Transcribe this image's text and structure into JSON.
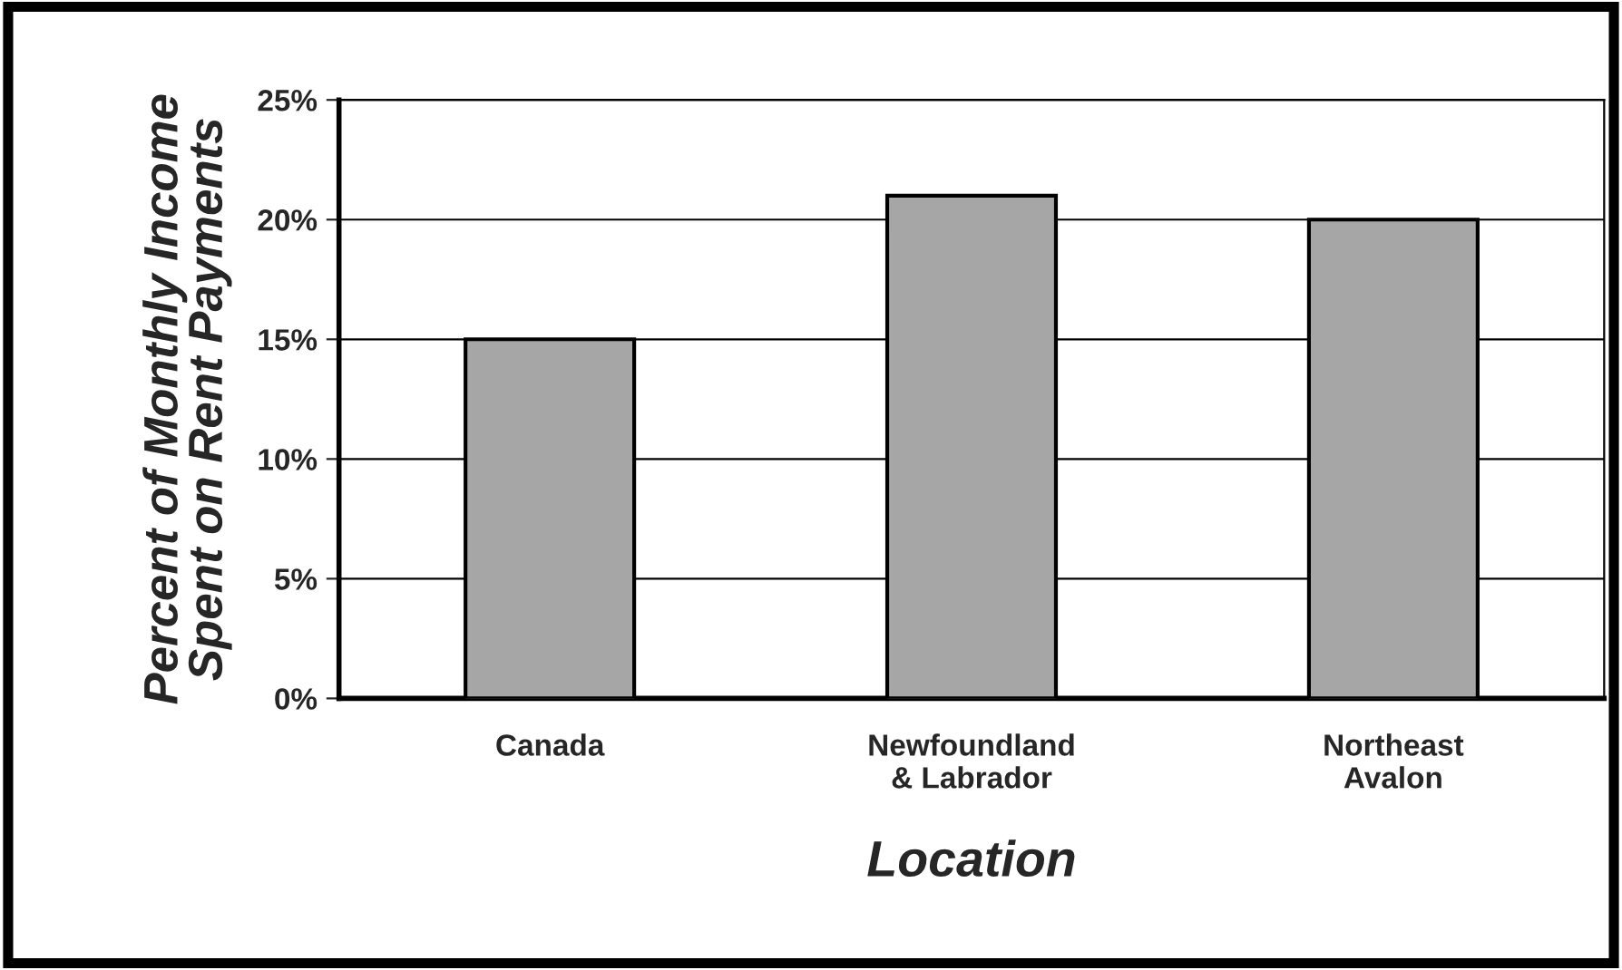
{
  "chart_data": {
    "type": "bar",
    "xlabel": "Location",
    "ylabel": "Percent of Monthly Income\nSpent on Rent Payments",
    "categories": [
      "Canada",
      "Newfoundland\n& Labrador",
      "Northeast\nAvalon"
    ],
    "values": [
      15,
      21,
      20
    ],
    "color": "#a6a6a6",
    "ylim": [
      0,
      25
    ],
    "yticks": [
      {
        "value": 0,
        "label": "0%"
      },
      {
        "value": 5,
        "label": "5%"
      },
      {
        "value": 10,
        "label": "10%"
      },
      {
        "value": 15,
        "label": "15%"
      },
      {
        "value": 20,
        "label": "20%"
      },
      {
        "value": 25,
        "label": "25%"
      }
    ],
    "grid": "y",
    "legend": false
  }
}
